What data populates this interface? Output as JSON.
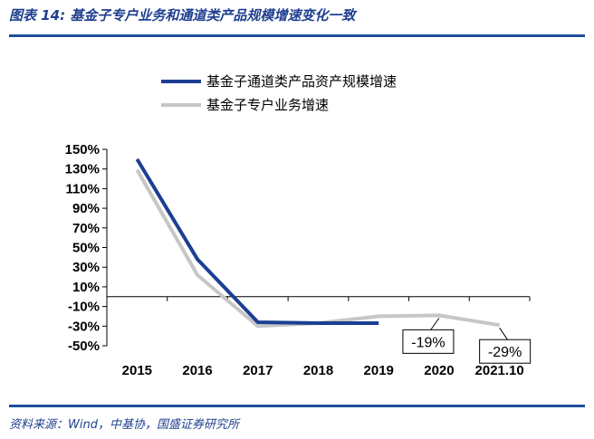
{
  "header": {
    "title": "图表 14:  基金子专户业务和通道类产品规模增速变化一致"
  },
  "footer": {
    "source": "资料来源：Wind，中基协，国盛证券研究所"
  },
  "colors": {
    "accent": "#1f4e9c",
    "series_navy": "#1c3f94",
    "series_gray": "#c6c6c6"
  },
  "chart_data": {
    "type": "line",
    "categories": [
      "2015",
      "2016",
      "2017",
      "2018",
      "2019",
      "2020",
      "2021.10"
    ],
    "series": [
      {
        "name": "基金子通道类产品资产规模增速",
        "color": "#1c3f94",
        "values": [
          140,
          38,
          -26,
          -27,
          -27,
          null,
          null
        ]
      },
      {
        "name": "基金子专户业务增速",
        "color": "#c6c6c6",
        "values": [
          129,
          22,
          -30,
          -27,
          -20,
          -19,
          -29
        ]
      }
    ],
    "y_ticks": [
      "150%",
      "130%",
      "110%",
      "90%",
      "70%",
      "50%",
      "30%",
      "10%",
      "-10%",
      "-30%",
      "-50%"
    ],
    "ylim": [
      -50,
      150
    ],
    "grid": false,
    "legend_position": "top",
    "annotations": [
      {
        "category": "2020",
        "label": "-19%",
        "value": -19
      },
      {
        "category": "2021.10",
        "label": "-29%",
        "value": -29
      }
    ]
  }
}
